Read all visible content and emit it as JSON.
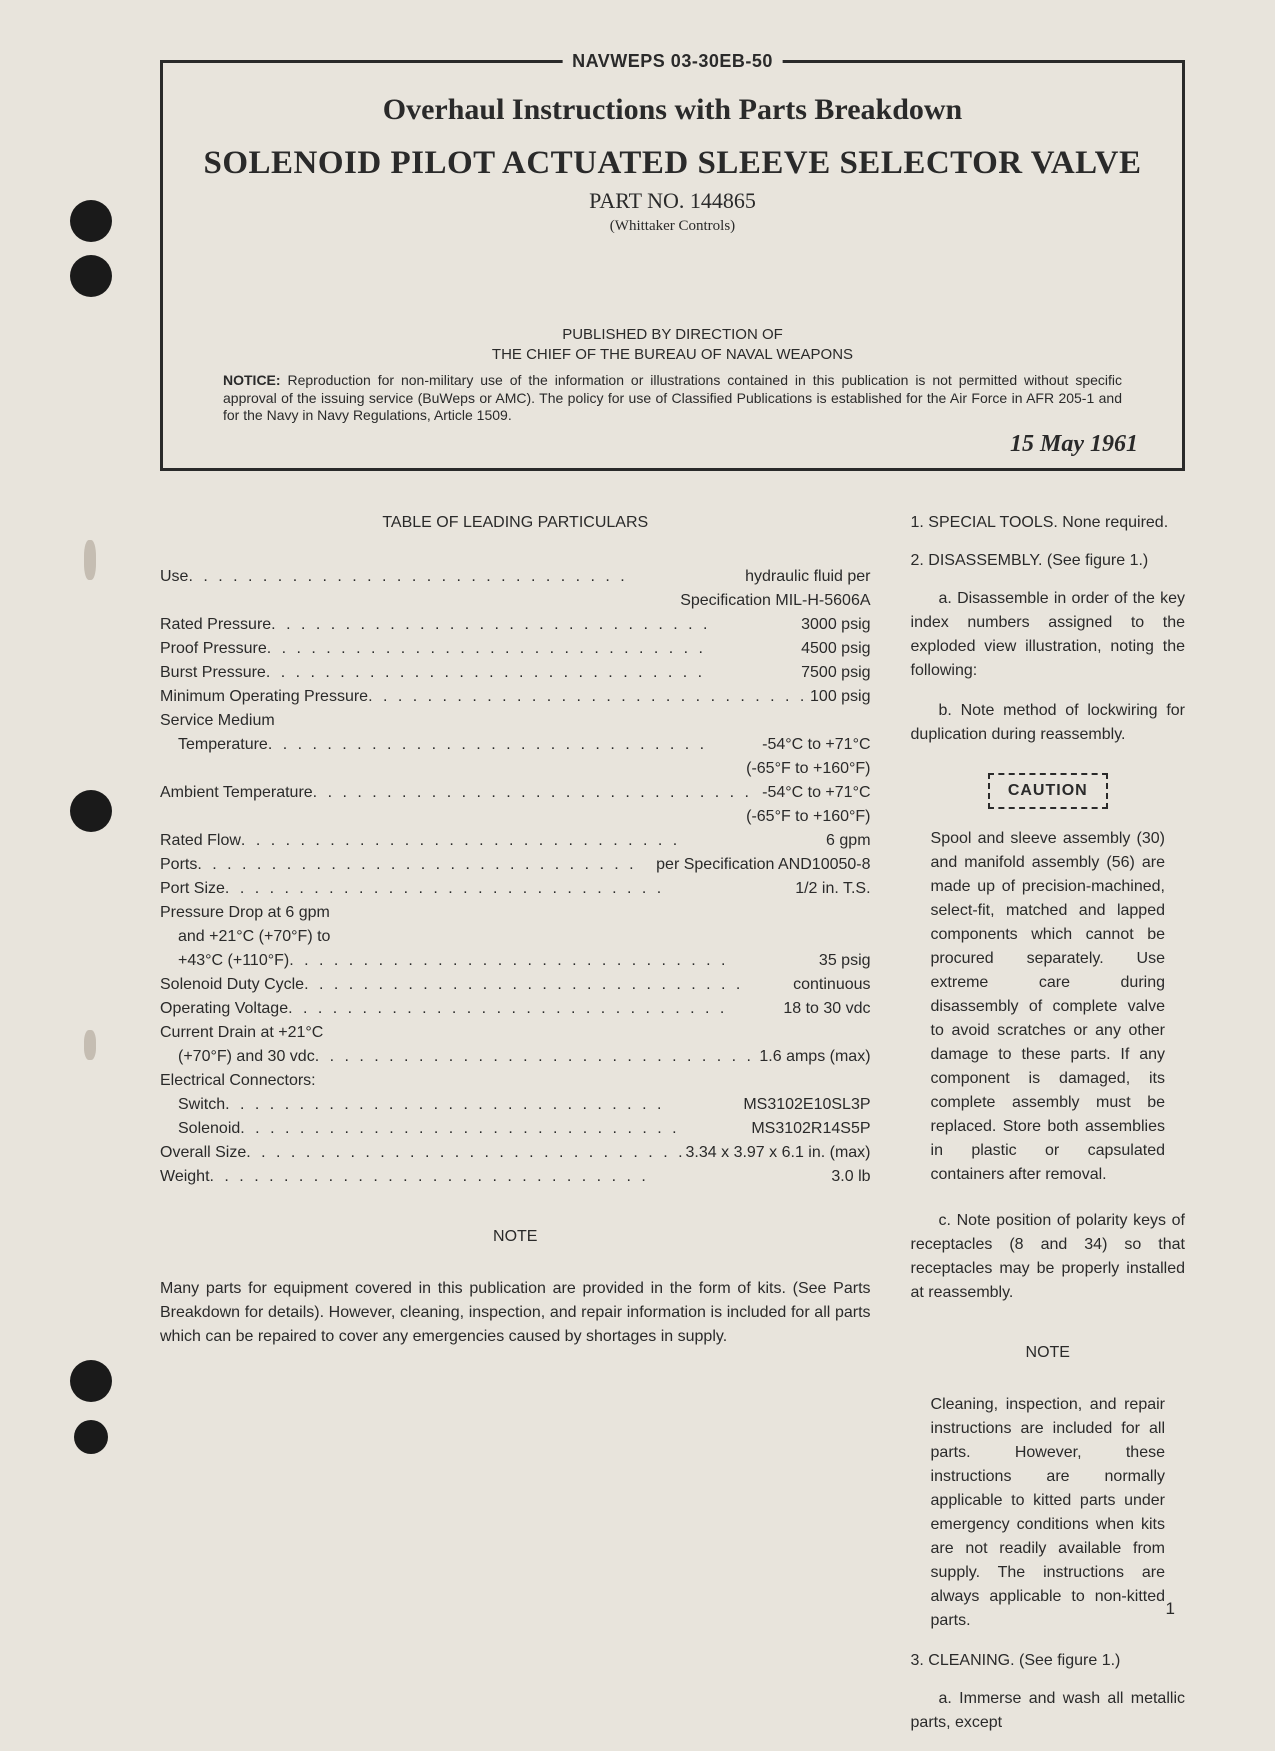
{
  "doc_id": "NAVWEPS 03-30EB-50",
  "subtitle": "Overhaul Instructions with Parts Breakdown",
  "main_title": "SOLENOID PILOT ACTUATED SLEEVE SELECTOR VALVE",
  "part_no": "PART NO. 144865",
  "manufacturer": "(Whittaker Controls)",
  "published_line1": "PUBLISHED BY DIRECTION OF",
  "published_line2": "THE CHIEF OF THE BUREAU OF NAVAL WEAPONS",
  "notice_label": "NOTICE:",
  "notice_text": "Reproduction for non-military use of the information or illustrations contained in this publication is not permitted without specific approval of the issuing service (BuWeps or AMC). The policy for use of Classified Publications is established for the Air Force in AFR 205-1 and for the Navy in Navy Regulations, Article 1509.",
  "date": "15 May 1961",
  "table_title": "TABLE OF LEADING PARTICULARS",
  "specs": {
    "use_label": "Use",
    "use_value": "hydraulic fluid per",
    "use_cont": "Specification MIL-H-5606A",
    "rated_pressure_label": "Rated Pressure",
    "rated_pressure_value": "3000 psig",
    "proof_pressure_label": "Proof Pressure",
    "proof_pressure_value": "4500 psig",
    "burst_pressure_label": "Burst Pressure",
    "burst_pressure_value": "7500 psig",
    "min_op_pressure_label": "Minimum Operating Pressure",
    "min_op_pressure_value": "100 psig",
    "service_medium_label": "Service Medium",
    "temperature_label": "Temperature",
    "temperature_value": "-54°C to +71°C",
    "temperature_cont": "(-65°F to +160°F)",
    "ambient_temp_label": "Ambient Temperature",
    "ambient_temp_value": "-54°C to +71°C",
    "ambient_temp_cont": "(-65°F to +160°F)",
    "rated_flow_label": "Rated Flow",
    "rated_flow_value": "6 gpm",
    "ports_label": "Ports",
    "ports_value": "per Specification AND10050-8",
    "port_size_label": "Port Size",
    "port_size_value": "1/2 in. T.S.",
    "pressure_drop_label": "Pressure Drop at 6 gpm",
    "pressure_drop_line2": "and +21°C (+70°F) to",
    "pressure_drop_line3": "+43°C (+110°F)",
    "pressure_drop_value": "35 psig",
    "solenoid_duty_label": "Solenoid Duty Cycle",
    "solenoid_duty_value": "continuous",
    "op_voltage_label": "Operating Voltage",
    "op_voltage_value": "18 to 30 vdc",
    "current_drain_label": "Current Drain at +21°C",
    "current_drain_line2": "(+70°F) and 30 vdc",
    "current_drain_value": "1.6 amps (max)",
    "elec_conn_label": "Electrical Connectors:",
    "switch_label": "Switch",
    "switch_value": "MS3102E10SL3P",
    "solenoid_label": "Solenoid",
    "solenoid_value": "MS3102R14S5P",
    "overall_size_label": "Overall Size",
    "overall_size_value": "3.34 x 3.97 x 6.1 in. (max)",
    "weight_label": "Weight",
    "weight_value": "3.0 lb"
  },
  "note_heading": "NOTE",
  "left_note": "Many parts for equipment covered in this publication are provided in the form of kits. (See Parts Breakdown for details). However, cleaning, inspection, and repair information is included for all parts which can be repaired to cover any emergencies caused by shortages in supply.",
  "right": {
    "sec1": "1. SPECIAL TOOLS. None required.",
    "sec2": "2. DISASSEMBLY. (See figure 1.)",
    "para_a": "a. Disassemble in order of the key index numbers assigned to the exploded view illustration, noting the following:",
    "para_b": "b. Note method of lockwiring for duplication during reassembly.",
    "caution_label": "CAUTION",
    "caution_text": "Spool and sleeve assembly (30) and manifold assembly (56) are made up of precision-machined, select-fit, matched and lapped components which cannot be procured separately. Use extreme care during disassembly of complete valve to avoid scratches or any other damage to these parts. If any component is damaged, its complete assembly must be replaced. Store both assemblies in plastic or capsulated containers after removal.",
    "para_c": "c. Note position of polarity keys of receptacles (8 and 34) so that receptacles may be properly installed at reassembly.",
    "note_heading": "NOTE",
    "right_note": "Cleaning, inspection, and repair instructions are included for all parts. However, these instructions are normally applicable to kitted parts under emergency conditions when kits are not readily available from supply. The instructions are always applicable to non-kitted parts.",
    "sec3": "3. CLEANING. (See figure 1.)",
    "para_3a": "a. Immerse and wash all metallic parts, except"
  },
  "page_num": "1"
}
